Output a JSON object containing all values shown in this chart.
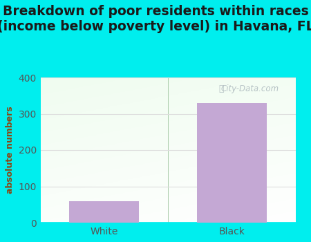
{
  "categories": [
    "White",
    "Black"
  ],
  "values": [
    60,
    330
  ],
  "bar_color": "#C4A8D4",
  "title_line1": "Breakdown of poor residents within races",
  "title_line2": "(income below poverty level) in Havana, FL",
  "ylabel": "absolute numbers",
  "ylim": [
    0,
    400
  ],
  "yticks": [
    0,
    100,
    200,
    300,
    400
  ],
  "bg_color": "#00EEEE",
  "title_fontsize": 13.5,
  "axis_label_fontsize": 9,
  "tick_fontsize": 10,
  "tick_color": "#555555",
  "ylabel_color": "#8B4513",
  "watermark_text": "City-Data.com"
}
